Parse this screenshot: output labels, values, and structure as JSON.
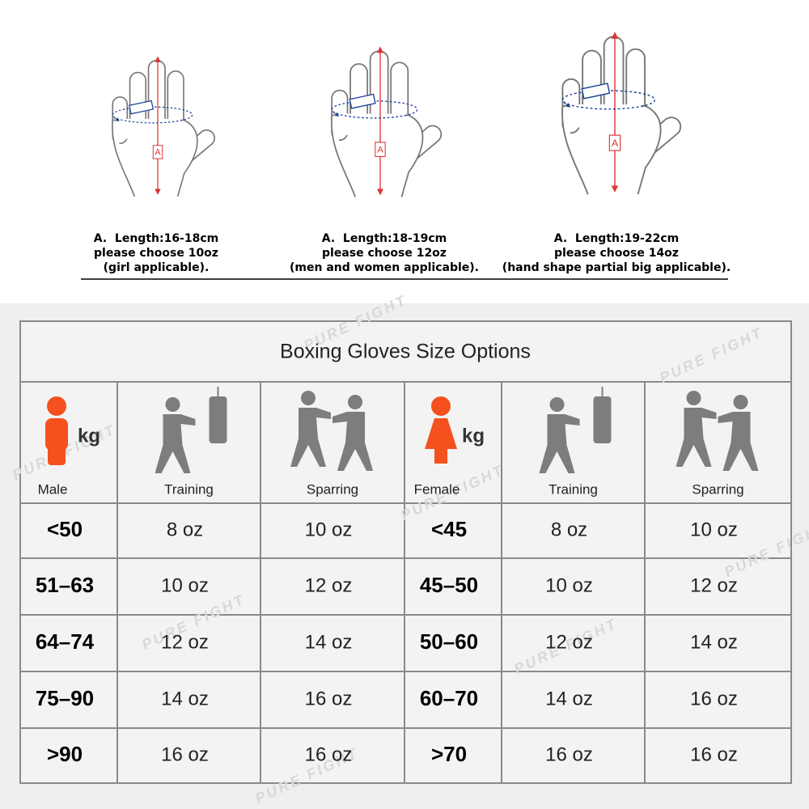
{
  "hands": [
    {
      "marker": "A",
      "caption": [
        "A.  Length:16-18cm",
        "please choose 10oz",
        "(girl applicable)."
      ]
    },
    {
      "marker": "A",
      "caption": [
        "A.  Length:18-19cm",
        "please choose 12oz",
        "(men and women applicable)."
      ]
    },
    {
      "marker": "A",
      "caption": [
        "A.  Length:19-22cm",
        "please choose 14oz",
        "(hand shape partial big applicable)."
      ]
    }
  ],
  "table": {
    "title": "Boxing Gloves Size Options",
    "header": [
      {
        "unit": "kg",
        "label": "Male"
      },
      {
        "label": "Training"
      },
      {
        "label": "Sparring"
      },
      {
        "unit": "kg",
        "label": "Female"
      },
      {
        "label": "Training"
      },
      {
        "label": "Sparring"
      }
    ],
    "rows": [
      [
        "<50",
        "8 oz",
        "10 oz",
        "<45",
        "8 oz",
        "10 oz"
      ],
      [
        "51–63",
        "10 oz",
        "12 oz",
        "45–50",
        "10 oz",
        "12 oz"
      ],
      [
        "64–74",
        "12 oz",
        "14 oz",
        "50–60",
        "12 oz",
        "14 oz"
      ],
      [
        "75–90",
        "14 oz",
        "16 oz",
        "60–70",
        "14 oz",
        "16 oz"
      ],
      [
        ">90",
        "16 oz",
        "16 oz",
        ">70",
        "16 oz",
        "16 oz"
      ]
    ]
  },
  "watermark": "PURE FIGHT"
}
